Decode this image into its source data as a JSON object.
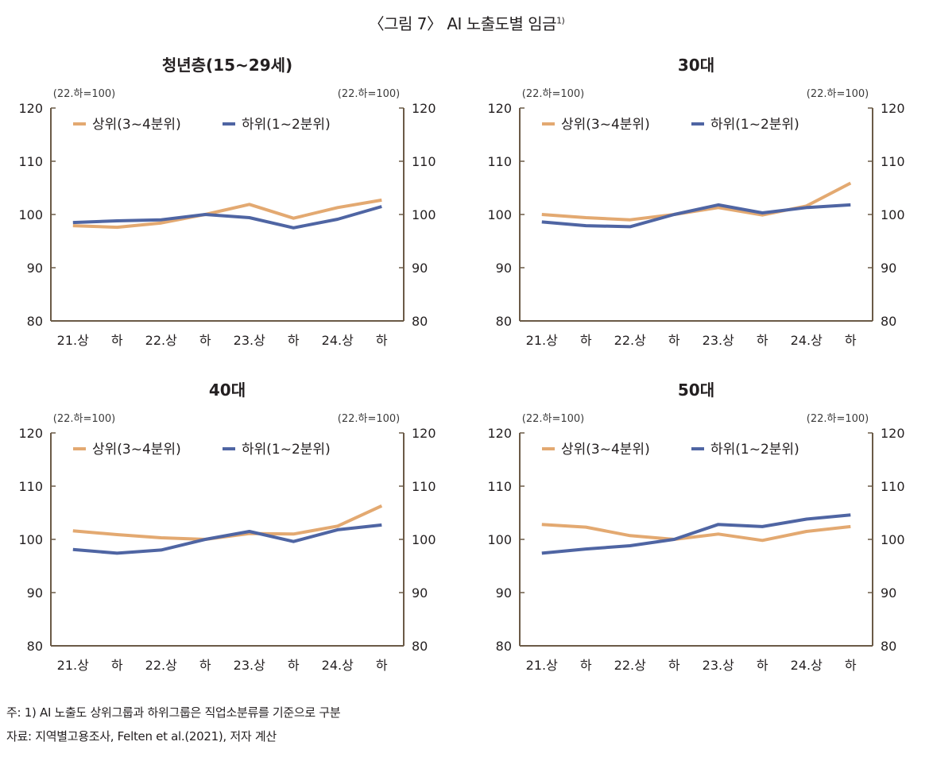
{
  "figure": {
    "title": "〈그림 7〉 AI 노출도별 임금",
    "title_note": "1)"
  },
  "notes": {
    "note": "주: 1) AI 노출도 상위그룹과 하위그룹은 직업소분류를 기준으로 구분",
    "source": "자료: 지역별고용조사, Felten et al.(2021), 저자 계산"
  },
  "colors": {
    "upper": "#e3a971",
    "lower": "#4f65a3",
    "axis": "#6b5a47"
  },
  "chart_data": [
    {
      "type": "line",
      "title": "청년층(15~29세)",
      "unit_left": "(22.하=100)",
      "unit_right": "(22.하=100)",
      "categories": [
        "21.상",
        "하",
        "22.상",
        "하",
        "23.상",
        "하",
        "24.상",
        "하"
      ],
      "ylim": [
        80,
        120
      ],
      "yticks": [
        80,
        90,
        100,
        110,
        120
      ],
      "series": [
        {
          "name": "상위(3~4분위)",
          "values": [
            97.9,
            97.6,
            98.4,
            100.0,
            101.9,
            99.3,
            101.3,
            102.7
          ]
        },
        {
          "name": "하위(1~2분위)",
          "values": [
            98.5,
            98.8,
            99.0,
            100.0,
            99.4,
            97.5,
            99.1,
            101.5
          ]
        }
      ],
      "legend": "top"
    },
    {
      "type": "line",
      "title": "30대",
      "unit_left": "(22.하=100)",
      "unit_right": "(22.하=100)",
      "categories": [
        "21.상",
        "하",
        "22.상",
        "하",
        "23.상",
        "하",
        "24.상",
        "하"
      ],
      "ylim": [
        80,
        120
      ],
      "yticks": [
        80,
        90,
        100,
        110,
        120
      ],
      "series": [
        {
          "name": "상위(3~4분위)",
          "values": [
            100.0,
            99.4,
            99.0,
            100.0,
            101.3,
            99.9,
            101.6,
            105.9
          ]
        },
        {
          "name": "하위(1~2분위)",
          "values": [
            98.6,
            97.9,
            97.7,
            100.0,
            101.8,
            100.3,
            101.3,
            101.8
          ]
        }
      ],
      "legend": "top"
    },
    {
      "type": "line",
      "title": "40대",
      "unit_left": "(22.하=100)",
      "unit_right": "(22.하=100)",
      "categories": [
        "21.상",
        "하",
        "22.상",
        "하",
        "23.상",
        "하",
        "24.상",
        "하"
      ],
      "ylim": [
        80,
        120
      ],
      "yticks": [
        80,
        90,
        100,
        110,
        120
      ],
      "series": [
        {
          "name": "상위(3~4분위)",
          "values": [
            101.6,
            100.9,
            100.3,
            100.0,
            101.1,
            101.0,
            102.5,
            106.3
          ]
        },
        {
          "name": "하위(1~2분위)",
          "values": [
            98.1,
            97.4,
            98.0,
            100.0,
            101.5,
            99.6,
            101.8,
            102.7
          ]
        }
      ],
      "legend": "top"
    },
    {
      "type": "line",
      "title": "50대",
      "unit_left": "(22.하=100)",
      "unit_right": "(22.하=100)",
      "categories": [
        "21.상",
        "하",
        "22.상",
        "하",
        "23.상",
        "하",
        "24.상",
        "하"
      ],
      "ylim": [
        80,
        120
      ],
      "yticks": [
        80,
        90,
        100,
        110,
        120
      ],
      "series": [
        {
          "name": "상위(3~4분위)",
          "values": [
            102.8,
            102.3,
            100.7,
            100.0,
            101.0,
            99.8,
            101.5,
            102.4
          ]
        },
        {
          "name": "하위(1~2분위)",
          "values": [
            97.4,
            98.2,
            98.8,
            100.0,
            102.8,
            102.4,
            103.8,
            104.6
          ]
        }
      ],
      "legend": "top"
    }
  ]
}
